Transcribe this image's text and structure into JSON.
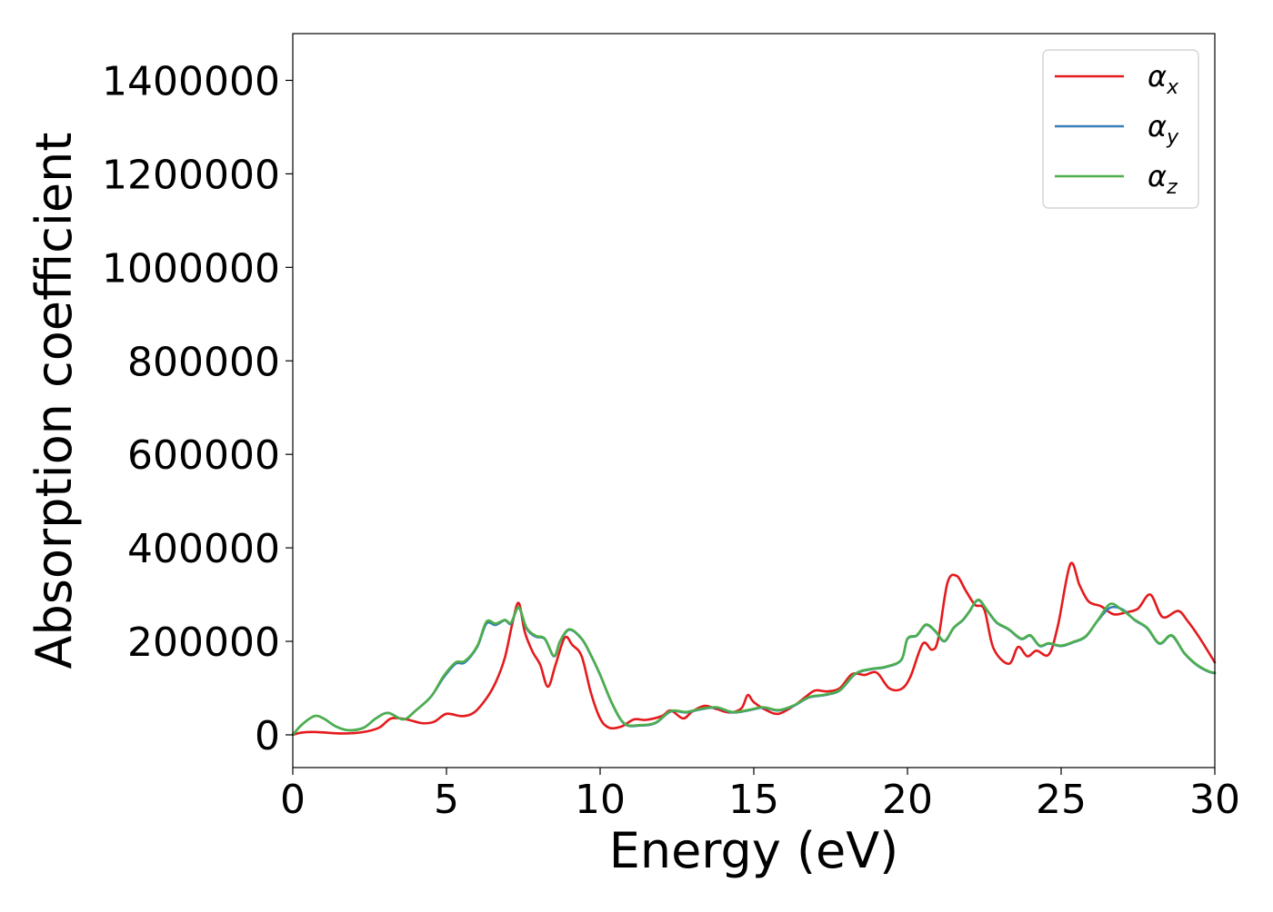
{
  "chart_data": {
    "type": "line",
    "xlabel": "Energy (eV)",
    "ylabel": "Absorption coefficient",
    "xlim": [
      0,
      30
    ],
    "ylim": [
      -70000,
      1500000
    ],
    "xticks": [
      0,
      5,
      10,
      15,
      20,
      25,
      30
    ],
    "xtick_labels": [
      "0",
      "5",
      "10",
      "15",
      "20",
      "25",
      "30"
    ],
    "yticks": [
      0,
      200000,
      400000,
      600000,
      800000,
      1000000,
      1200000,
      1400000
    ],
    "ytick_labels": [
      "0",
      "200000",
      "400000",
      "600000",
      "800000",
      "1000000",
      "1200000",
      "1400000"
    ],
    "grid": false,
    "legend_position": "top-right",
    "series": [
      {
        "name": "αx",
        "legend_base": "α",
        "legend_sub": "x",
        "color": "#e41a1c",
        "points": [
          [
            0,
            0
          ],
          [
            0.3,
            5000
          ],
          [
            0.8,
            6000
          ],
          [
            1.5,
            3000
          ],
          [
            2.2,
            5000
          ],
          [
            2.8,
            15000
          ],
          [
            3.2,
            35000
          ],
          [
            3.7,
            33000
          ],
          [
            4.2,
            25000
          ],
          [
            4.6,
            28000
          ],
          [
            5.0,
            45000
          ],
          [
            5.5,
            40000
          ],
          [
            5.9,
            48000
          ],
          [
            6.3,
            78000
          ],
          [
            6.6,
            112000
          ],
          [
            6.9,
            165000
          ],
          [
            7.15,
            240000
          ],
          [
            7.35,
            282000
          ],
          [
            7.55,
            220000
          ],
          [
            7.8,
            178000
          ],
          [
            8.05,
            150000
          ],
          [
            8.3,
            103000
          ],
          [
            8.55,
            150000
          ],
          [
            8.85,
            208000
          ],
          [
            9.1,
            192000
          ],
          [
            9.4,
            168000
          ],
          [
            9.7,
            90000
          ],
          [
            10.0,
            35000
          ],
          [
            10.3,
            15000
          ],
          [
            10.7,
            18000
          ],
          [
            11.1,
            33000
          ],
          [
            11.5,
            32000
          ],
          [
            12.0,
            40000
          ],
          [
            12.3,
            52000
          ],
          [
            12.7,
            35000
          ],
          [
            13.0,
            50000
          ],
          [
            13.4,
            62000
          ],
          [
            13.8,
            55000
          ],
          [
            14.2,
            48000
          ],
          [
            14.6,
            57000
          ],
          [
            14.8,
            85000
          ],
          [
            15.0,
            70000
          ],
          [
            15.4,
            53000
          ],
          [
            15.8,
            45000
          ],
          [
            16.3,
            62000
          ],
          [
            16.7,
            82000
          ],
          [
            17.0,
            95000
          ],
          [
            17.4,
            93000
          ],
          [
            17.8,
            100000
          ],
          [
            18.2,
            130000
          ],
          [
            18.6,
            128000
          ],
          [
            19.0,
            133000
          ],
          [
            19.4,
            100000
          ],
          [
            19.8,
            98000
          ],
          [
            20.1,
            125000
          ],
          [
            20.5,
            195000
          ],
          [
            20.8,
            182000
          ],
          [
            21.0,
            205000
          ],
          [
            21.3,
            325000
          ],
          [
            21.6,
            340000
          ],
          [
            21.9,
            308000
          ],
          [
            22.2,
            278000
          ],
          [
            22.5,
            268000
          ],
          [
            22.8,
            185000
          ],
          [
            23.3,
            152000
          ],
          [
            23.6,
            188000
          ],
          [
            23.9,
            168000
          ],
          [
            24.2,
            180000
          ],
          [
            24.6,
            172000
          ],
          [
            24.9,
            235000
          ],
          [
            25.3,
            365000
          ],
          [
            25.6,
            320000
          ],
          [
            25.9,
            285000
          ],
          [
            26.3,
            275000
          ],
          [
            26.7,
            258000
          ],
          [
            27.1,
            262000
          ],
          [
            27.5,
            270000
          ],
          [
            27.9,
            300000
          ],
          [
            28.3,
            252000
          ],
          [
            28.8,
            265000
          ],
          [
            29.1,
            245000
          ],
          [
            29.5,
            208000
          ],
          [
            30.0,
            155000
          ]
        ]
      },
      {
        "name": "αy",
        "legend_base": "α",
        "legend_sub": "y",
        "color": "#377eb8",
        "points": [
          [
            0,
            0
          ],
          [
            0.3,
            22000
          ],
          [
            0.7,
            40000
          ],
          [
            1.0,
            35000
          ],
          [
            1.4,
            18000
          ],
          [
            1.8,
            10000
          ],
          [
            2.3,
            15000
          ],
          [
            2.7,
            35000
          ],
          [
            3.1,
            47000
          ],
          [
            3.6,
            33000
          ],
          [
            4.0,
            52000
          ],
          [
            4.5,
            82000
          ],
          [
            4.9,
            122000
          ],
          [
            5.3,
            152000
          ],
          [
            5.6,
            155000
          ],
          [
            6.0,
            188000
          ],
          [
            6.3,
            238000
          ],
          [
            6.6,
            235000
          ],
          [
            6.9,
            245000
          ],
          [
            7.1,
            238000
          ],
          [
            7.35,
            272000
          ],
          [
            7.6,
            228000
          ],
          [
            7.9,
            210000
          ],
          [
            8.2,
            205000
          ],
          [
            8.5,
            168000
          ],
          [
            8.7,
            200000
          ],
          [
            9.0,
            225000
          ],
          [
            9.4,
            205000
          ],
          [
            9.7,
            170000
          ],
          [
            10.0,
            128000
          ],
          [
            10.4,
            65000
          ],
          [
            10.8,
            23000
          ],
          [
            11.3,
            20000
          ],
          [
            11.8,
            25000
          ],
          [
            12.3,
            50000
          ],
          [
            12.8,
            48000
          ],
          [
            13.3,
            55000
          ],
          [
            13.8,
            58000
          ],
          [
            14.3,
            48000
          ],
          [
            14.8,
            52000
          ],
          [
            15.3,
            58000
          ],
          [
            15.8,
            52000
          ],
          [
            16.3,
            62000
          ],
          [
            16.8,
            80000
          ],
          [
            17.3,
            85000
          ],
          [
            17.8,
            95000
          ],
          [
            18.3,
            130000
          ],
          [
            18.8,
            140000
          ],
          [
            19.3,
            145000
          ],
          [
            19.8,
            160000
          ],
          [
            20.0,
            205000
          ],
          [
            20.3,
            212000
          ],
          [
            20.6,
            235000
          ],
          [
            20.9,
            222000
          ],
          [
            21.2,
            200000
          ],
          [
            21.5,
            228000
          ],
          [
            21.8,
            245000
          ],
          [
            22.0,
            262000
          ],
          [
            22.3,
            288000
          ],
          [
            22.6,
            265000
          ],
          [
            22.9,
            240000
          ],
          [
            23.3,
            225000
          ],
          [
            23.7,
            205000
          ],
          [
            24.0,
            212000
          ],
          [
            24.3,
            190000
          ],
          [
            24.6,
            195000
          ],
          [
            25.0,
            190000
          ],
          [
            25.4,
            198000
          ],
          [
            25.8,
            210000
          ],
          [
            26.2,
            245000
          ],
          [
            26.6,
            272000
          ],
          [
            27.0,
            268000
          ],
          [
            27.4,
            245000
          ],
          [
            27.8,
            228000
          ],
          [
            28.2,
            195000
          ],
          [
            28.6,
            212000
          ],
          [
            29.0,
            175000
          ],
          [
            29.4,
            150000
          ],
          [
            29.8,
            135000
          ],
          [
            30.0,
            132000
          ]
        ]
      },
      {
        "name": "αz",
        "legend_base": "α",
        "legend_sub": "z",
        "color": "#4daf4a",
        "points": [
          [
            0,
            0
          ],
          [
            0.3,
            22000
          ],
          [
            0.7,
            40000
          ],
          [
            1.0,
            35000
          ],
          [
            1.4,
            18000
          ],
          [
            1.8,
            10000
          ],
          [
            2.3,
            15000
          ],
          [
            2.7,
            35000
          ],
          [
            3.1,
            47000
          ],
          [
            3.6,
            33000
          ],
          [
            4.0,
            52000
          ],
          [
            4.5,
            82000
          ],
          [
            4.9,
            125000
          ],
          [
            5.3,
            155000
          ],
          [
            5.6,
            158000
          ],
          [
            6.0,
            190000
          ],
          [
            6.3,
            242000
          ],
          [
            6.6,
            238000
          ],
          [
            6.9,
            246000
          ],
          [
            7.1,
            240000
          ],
          [
            7.35,
            273000
          ],
          [
            7.6,
            230000
          ],
          [
            7.9,
            212000
          ],
          [
            8.2,
            206000
          ],
          [
            8.5,
            169000
          ],
          [
            8.7,
            201000
          ],
          [
            9.0,
            226000
          ],
          [
            9.4,
            206000
          ],
          [
            9.7,
            171000
          ],
          [
            10.0,
            129000
          ],
          [
            10.4,
            66000
          ],
          [
            10.8,
            24000
          ],
          [
            11.3,
            21000
          ],
          [
            11.8,
            26000
          ],
          [
            12.3,
            51000
          ],
          [
            12.8,
            49000
          ],
          [
            13.3,
            56000
          ],
          [
            13.8,
            59000
          ],
          [
            14.3,
            49000
          ],
          [
            14.8,
            53000
          ],
          [
            15.3,
            59000
          ],
          [
            15.8,
            53000
          ],
          [
            16.3,
            63000
          ],
          [
            16.8,
            81000
          ],
          [
            17.3,
            86000
          ],
          [
            17.8,
            96000
          ],
          [
            18.3,
            131000
          ],
          [
            18.8,
            141000
          ],
          [
            19.3,
            146000
          ],
          [
            19.8,
            161000
          ],
          [
            20.0,
            206000
          ],
          [
            20.3,
            213000
          ],
          [
            20.6,
            236000
          ],
          [
            20.9,
            223000
          ],
          [
            21.2,
            201000
          ],
          [
            21.5,
            229000
          ],
          [
            21.8,
            246000
          ],
          [
            22.0,
            263000
          ],
          [
            22.3,
            289000
          ],
          [
            22.6,
            266000
          ],
          [
            22.9,
            241000
          ],
          [
            23.3,
            226000
          ],
          [
            23.7,
            206000
          ],
          [
            24.0,
            213000
          ],
          [
            24.3,
            191000
          ],
          [
            24.6,
            196000
          ],
          [
            25.0,
            191000
          ],
          [
            25.4,
            199000
          ],
          [
            25.8,
            211000
          ],
          [
            26.2,
            246000
          ],
          [
            26.6,
            280000
          ],
          [
            27.0,
            266000
          ],
          [
            27.4,
            246000
          ],
          [
            27.8,
            229000
          ],
          [
            28.2,
            196000
          ],
          [
            28.6,
            213000
          ],
          [
            29.0,
            176000
          ],
          [
            29.4,
            151000
          ],
          [
            29.8,
            136000
          ],
          [
            30.0,
            133000
          ]
        ]
      }
    ]
  }
}
